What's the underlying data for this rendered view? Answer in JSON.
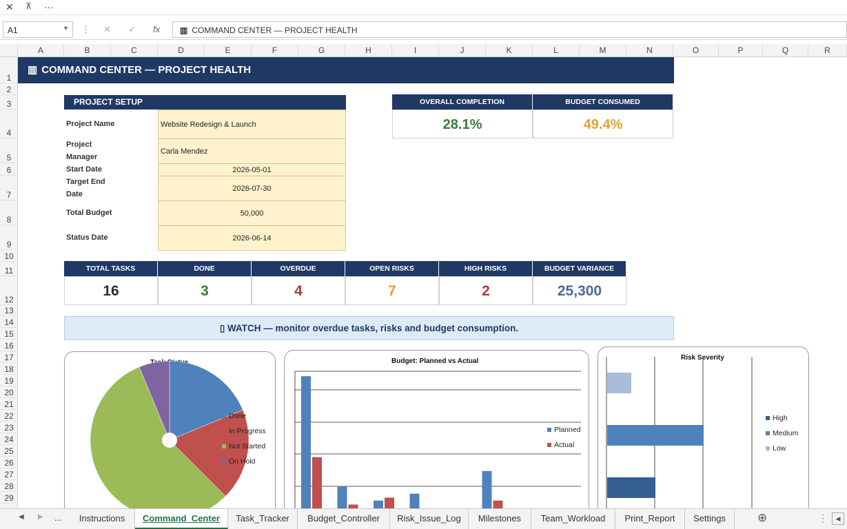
{
  "window": {
    "close": "✕",
    "restore": "⊼",
    "more": "···"
  },
  "formula_bar": {
    "cell_ref": "A1",
    "cancel": "✕",
    "enter": "✓",
    "fx": "fx",
    "content": "COMMAND CENTER  —  PROJECT HEALTH"
  },
  "columns": [
    "A",
    "B",
    "C",
    "D",
    "E",
    "F",
    "G",
    "H",
    "I",
    "J",
    "K",
    "L",
    "M",
    "N",
    "O",
    "P",
    "Q",
    "R"
  ],
  "rows": [
    "1",
    "2",
    "3",
    "4",
    "5",
    "6",
    "7",
    "8",
    "9",
    "10",
    "11",
    "12",
    "13",
    "14",
    "15",
    "16",
    "17",
    "18",
    "19",
    "20",
    "21",
    "22",
    "23",
    "24",
    "25",
    "26",
    "27",
    "28",
    "29"
  ],
  "banner": {
    "title": "COMMAND CENTER  —  PROJECT HEALTH"
  },
  "setup": {
    "header": "PROJECT SETUP",
    "fields": [
      {
        "label": "Project Name",
        "value": "Website Redesign & Launch"
      },
      {
        "label": "Project Manager",
        "value": "Carla Mendez"
      },
      {
        "label": "Start Date",
        "value": "2026-05-01"
      },
      {
        "label": "Target End Date",
        "value": "2026-07-30"
      },
      {
        "label": "Total Budget",
        "value": "50,000"
      },
      {
        "label": "Status Date",
        "value": "2026-06-14"
      }
    ]
  },
  "top_kpis": [
    {
      "label": "OVERALL COMPLETION",
      "value": "28.1%",
      "color": "#3a7a3a"
    },
    {
      "label": "BUDGET CONSUMED",
      "value": "49.4%",
      "color": "#e2a234"
    }
  ],
  "kpis": [
    {
      "label": "TOTAL TASKS",
      "value": "16",
      "color": "#2b2b3a"
    },
    {
      "label": "DONE",
      "value": "3",
      "color": "#3a7a3a"
    },
    {
      "label": "OVERDUE",
      "value": "4",
      "color": "#b03a3a"
    },
    {
      "label": "OPEN RISKS",
      "value": "7",
      "color": "#e2a234"
    },
    {
      "label": "HIGH RISKS",
      "value": "2",
      "color": "#b03a3a"
    },
    {
      "label": "BUDGET VARIANCE",
      "value": "25,300",
      "color": "#4a6b9a"
    }
  ],
  "watch": "▯ WATCH — monitor overdue tasks, risks and budget consumption.",
  "chart_data": [
    {
      "type": "pie",
      "title": "Task Status",
      "categories": [
        "Done",
        "In Progress",
        "Not Started",
        "On Hold"
      ],
      "values": [
        3,
        3,
        9,
        1
      ],
      "colors": [
        "#4f81bd",
        "#c0504d",
        "#9bbb59",
        "#8064a2"
      ]
    },
    {
      "type": "bar",
      "title": "Budget: Planned vs Actual",
      "series": [
        {
          "name": "Planned",
          "values": [
            14500,
            3300,
            1900,
            2600,
            0,
            4900,
            900
          ],
          "color": "#4f81bd"
        },
        {
          "name": "Actual",
          "values": [
            6300,
            1500,
            2200,
            0,
            0,
            1900,
            0
          ],
          "color": "#c0504d"
        }
      ]
    },
    {
      "type": "bar",
      "title": "Risk Severity",
      "orientation": "horizontal",
      "series": [
        {
          "name": "High",
          "color": "#365f91"
        },
        {
          "name": "Medium",
          "color": "#4f81bd"
        },
        {
          "name": "Low",
          "color": "#a9bcd8"
        }
      ]
    }
  ],
  "tabs": [
    "Instructions",
    "Command_Center",
    "Task_Tracker",
    "Budget_Controller",
    "Risk_Issue_Log",
    "Milestones",
    "Team_Workload",
    "Print_Report",
    "Settings"
  ],
  "tab_nav": {
    "prev": "◀",
    "next": "▶",
    "more": "...",
    "add": "⊕"
  }
}
